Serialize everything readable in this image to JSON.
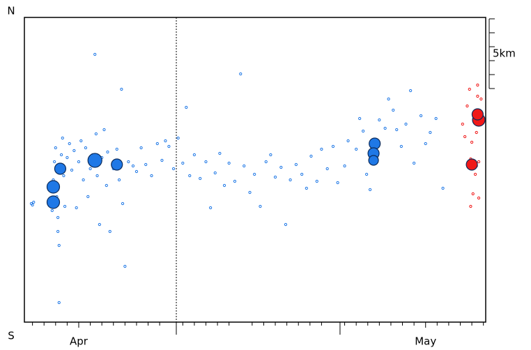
{
  "chart_data": {
    "type": "scatter",
    "north_label": "N",
    "south_label": "S",
    "xlim": [
      -4.7,
      35.2
    ],
    "ylim": [
      0,
      21.85
    ],
    "xticks": [
      {
        "value": 0,
        "label": "Apr"
      },
      {
        "value": 30,
        "label": "May"
      }
    ],
    "major_xticks": [
      8.44,
      22.6
    ],
    "minor_xticks": [
      -4,
      -3,
      -2,
      -1,
      1,
      2,
      3,
      4,
      5,
      6,
      7,
      9,
      10,
      11,
      12,
      13,
      15,
      16,
      17,
      18,
      19,
      20,
      21,
      23,
      24,
      25,
      26,
      27,
      28,
      29,
      31,
      32,
      33,
      34,
      35
    ],
    "divider_x": 8.44,
    "scale_bar": {
      "label": "5km",
      "length": 5,
      "ticks": [
        0,
        1,
        2,
        3,
        4,
        5
      ]
    },
    "series": [
      {
        "color": "#1f78e6",
        "x": [
          -4.1,
          -4.0,
          -3.9,
          -2.3,
          -2.2,
          -2.1,
          -2.0,
          -1.9,
          -1.8,
          -1.8,
          -1.7,
          -1.7,
          -1.6,
          -1.5,
          -1.4,
          -1.3,
          -1.2,
          -1.0,
          -0.8,
          -0.6,
          -0.4,
          -0.2,
          0,
          0.2,
          0.4,
          0.6,
          0.8,
          1.0,
          1.2,
          1.4,
          1.5,
          1.6,
          1.8,
          2.0,
          2.2,
          2.4,
          2.5,
          2.7,
          3.0,
          3.3,
          3.5,
          3.7,
          3.8,
          4.0,
          4.3,
          4.7,
          5.0,
          5.4,
          5.8,
          6.3,
          6.8,
          7.2,
          7.5,
          7.8,
          8.2,
          8.6,
          9.0,
          9.3,
          9.6,
          10.0,
          10.5,
          11.0,
          11.4,
          11.8,
          12.2,
          12.6,
          13.0,
          13.5,
          14.0,
          14.3,
          14.8,
          15.2,
          15.7,
          16.2,
          16.6,
          17.0,
          17.5,
          17.9,
          18.3,
          18.8,
          19.3,
          19.7,
          20.1,
          20.6,
          21.0,
          21.5,
          22.0,
          22.4,
          23.0,
          23.3,
          24.0,
          24.3,
          24.6,
          24.9,
          25.2,
          25.5,
          26.0,
          26.5,
          26.8,
          27.2,
          27.5,
          27.9,
          28.3,
          28.7,
          29.0,
          29.6,
          30.0,
          30.4,
          30.9,
          31.5
        ],
        "y": [
          8.5,
          8.4,
          8.6,
          8.0,
          10.2,
          11.5,
          12.5,
          9.0,
          7.5,
          6.5,
          5.5,
          1.4,
          11.0,
          12.0,
          13.2,
          10.5,
          8.3,
          11.8,
          12.8,
          10.9,
          12.3,
          8.2,
          11.5,
          13.0,
          10.2,
          12.5,
          9.0,
          11.0,
          12.0,
          19.2,
          13.5,
          10.5,
          7.0,
          11.8,
          13.8,
          9.8,
          12.2,
          6.5,
          11.0,
          12.4,
          10.2,
          16.7,
          8.5,
          4.0,
          11.5,
          11.2,
          10.8,
          12.5,
          11.3,
          10.5,
          12.8,
          11.6,
          13.0,
          12.6,
          11.0,
          13.2,
          11.4,
          15.4,
          10.5,
          12.0,
          10.3,
          11.5,
          8.2,
          10.7,
          12.1,
          9.8,
          11.4,
          10.1,
          17.8,
          11.2,
          9.3,
          10.6,
          8.3,
          11.5,
          12.0,
          10.4,
          11.1,
          7.0,
          10.2,
          11.3,
          10.6,
          9.6,
          11.9,
          10.1,
          12.4,
          11.0,
          12.6,
          10.0,
          11.2,
          13.0,
          12.4,
          14.6,
          13.7,
          10.6,
          9.5,
          12.8,
          14.5,
          13.9,
          16.0,
          15.2,
          13.8,
          12.6,
          14.2,
          16.6,
          11.4,
          14.8,
          12.8,
          13.6,
          14.6,
          9.6
        ]
      },
      {
        "color": "#1f78e6",
        "x": [
          -2.2,
          -2.2,
          -1.6,
          1.4,
          3.3,
          25.6,
          25.5,
          25.5
        ],
        "y": [
          9.7,
          8.6,
          11.0,
          11.6,
          11.3,
          12.8,
          12.1,
          11.6
        ],
        "size": [
          9,
          9,
          8,
          10,
          8,
          8,
          8,
          7
        ]
      },
      {
        "color": "#f01818",
        "x": [
          33.2,
          33.4,
          33.6,
          33.8,
          34.0,
          34.2,
          34.4,
          34.5,
          34.6,
          34.7,
          34.3,
          34.1,
          33.9,
          34.6,
          34.4,
          34.8,
          34.5,
          33.9
        ],
        "y": [
          14.2,
          13.3,
          15.5,
          16.7,
          12.9,
          15.0,
          13.6,
          16.2,
          11.5,
          14.8,
          10.6,
          9.2,
          8.3,
          8.9,
          11.2,
          16.0,
          17.0,
          11.7
        ]
      },
      {
        "color": "#f01818",
        "x": [
          34.6,
          34.5,
          34.0
        ],
        "y": [
          14.5,
          14.9,
          11.3
        ],
        "size": [
          9,
          8,
          8
        ]
      }
    ]
  }
}
